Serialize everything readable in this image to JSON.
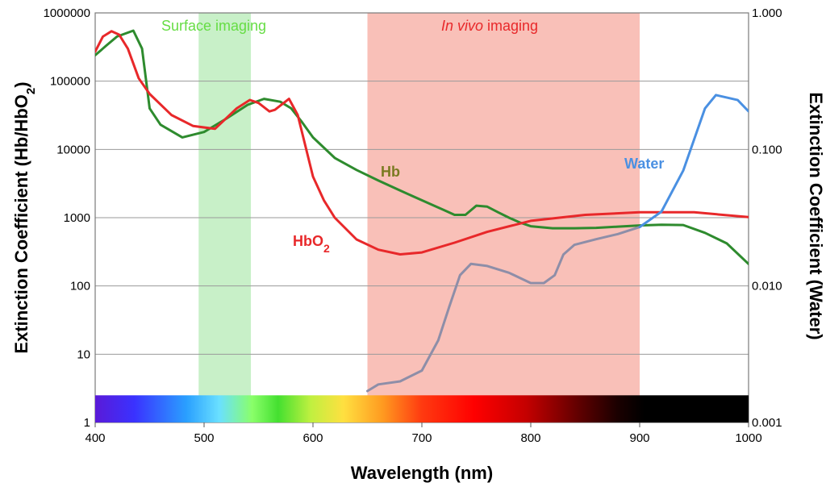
{
  "chart_data": {
    "type": "line",
    "title": "",
    "xlabel": "Wavelength (nm)",
    "ylabel_left": "Extinction Coefficient (Hb/HbO",
    "ylabel_left_sub": "2",
    "ylabel_left_end": ")",
    "ylabel_right": "Extinction Coefficient (Water)",
    "xlim": [
      400,
      1000
    ],
    "ylim_left": [
      1,
      1000000
    ],
    "ylim_right": [
      0.001,
      1.0
    ],
    "yscale": "log",
    "grid": true,
    "x_ticks": [
      "400",
      "500",
      "600",
      "700",
      "800",
      "900",
      "1000"
    ],
    "y_ticks_left": [
      "1",
      "10",
      "100",
      "1000",
      "10000",
      "100000",
      "1000000"
    ],
    "y_ticks_right": [
      "0.001",
      "0.010",
      "0.100",
      "1.000"
    ],
    "regions": [
      {
        "name": "Surface imaging",
        "label": "Surface imaging",
        "x_start": 495,
        "x_end": 543,
        "color": "#c8f0c8",
        "label_color": "#66dd44"
      },
      {
        "name": "In vivo imaging",
        "label_italic": "In vivo",
        "label_rest": " imaging",
        "x_start": 650,
        "x_end": 900,
        "color": "#f9c0b8",
        "label_color": "#e8282a"
      }
    ],
    "spectrum_bar": {
      "x_start": 400,
      "x_end": 1000,
      "y_low": 1,
      "y_high": 2.5
    },
    "series": [
      {
        "name": "Hb",
        "label": "Hb",
        "axis": "left",
        "color": "#2e8b2e",
        "label_color": "#7a7a20",
        "x": [
          400,
          410,
          420,
          435,
          443,
          450,
          460,
          480,
          500,
          520,
          540,
          555,
          570,
          580,
          590,
          600,
          620,
          640,
          660,
          680,
          700,
          720,
          730,
          740,
          750,
          760,
          770,
          780,
          790,
          800,
          820,
          840,
          860,
          880,
          900,
          920,
          940,
          960,
          980,
          1000
        ],
        "y": [
          240000,
          330000,
          450000,
          550000,
          300000,
          40000,
          23000,
          15000,
          18000,
          28000,
          45000,
          55000,
          50000,
          40000,
          25000,
          15000,
          7500,
          5000,
          3500,
          2500,
          1800,
          1300,
          1100,
          1100,
          1500,
          1450,
          1200,
          1000,
          850,
          750,
          700,
          700,
          710,
          740,
          770,
          790,
          780,
          600,
          420,
          210
        ]
      },
      {
        "name": "HbO2",
        "label": "HbO",
        "label_sub": "2",
        "axis": "left",
        "color": "#e8282a",
        "label_color": "#e8282a",
        "x": [
          400,
          407,
          415,
          422,
          430,
          440,
          450,
          470,
          490,
          510,
          530,
          542,
          550,
          560,
          565,
          578,
          586,
          600,
          610,
          620,
          640,
          660,
          680,
          700,
          730,
          760,
          800,
          850,
          900,
          950,
          1000
        ],
        "y": [
          270000,
          450000,
          540000,
          480000,
          300000,
          110000,
          65000,
          32000,
          22000,
          20000,
          40000,
          53000,
          48000,
          36000,
          38000,
          55000,
          32000,
          4000,
          1800,
          1000,
          480,
          340,
          290,
          310,
          430,
          620,
          900,
          1100,
          1200,
          1200,
          1020
        ]
      },
      {
        "name": "Water",
        "label": "Water",
        "axis": "right",
        "color": "#4a90e2",
        "gray_color": "#8e8ea8",
        "label_color": "#4a90e2",
        "gray_until": 900,
        "x": [
          650,
          660,
          680,
          700,
          715,
          725,
          735,
          745,
          760,
          780,
          800,
          812,
          822,
          830,
          840,
          860,
          880,
          900,
          920,
          940,
          960,
          970,
          990,
          1000
        ],
        "y": [
          0.0017,
          0.0019,
          0.002,
          0.0024,
          0.004,
          0.007,
          0.012,
          0.0145,
          0.014,
          0.0125,
          0.0105,
          0.0105,
          0.012,
          0.017,
          0.02,
          0.022,
          0.024,
          0.027,
          0.035,
          0.07,
          0.2,
          0.25,
          0.23,
          0.19
        ]
      }
    ]
  }
}
